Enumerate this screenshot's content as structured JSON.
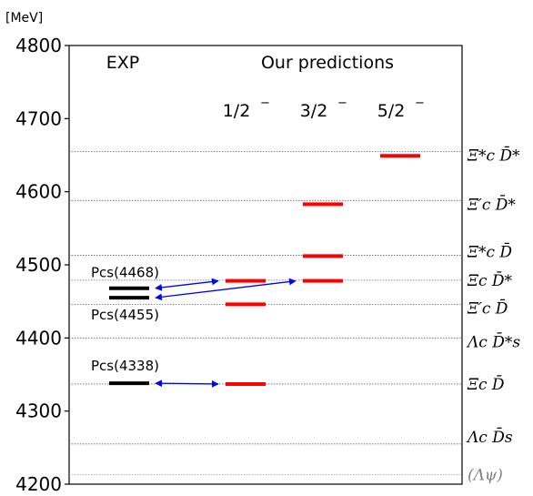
{
  "chart_data": {
    "type": "level-diagram",
    "unit_label": "[MeV]",
    "ylim": [
      4200,
      4800
    ],
    "yticks": [
      4200,
      4300,
      4400,
      4500,
      4600,
      4700,
      4800
    ],
    "column_headers": {
      "exp": "EXP",
      "predictions": "Our predictions",
      "jp": [
        "1/2",
        "3/2",
        "5/2"
      ],
      "jp_sign": "−"
    },
    "thresholds": [
      {
        "name": "Ξ*c D̄*",
        "value": 4655,
        "color": "#000000"
      },
      {
        "name": "Ξ′c D̄*",
        "value": 4588,
        "color": "#000000"
      },
      {
        "name": "Ξ*c D̄",
        "value": 4513,
        "color": "#000000"
      },
      {
        "name": "Ξc D̄*",
        "value": 4479,
        "color": "#000000"
      },
      {
        "name": "Ξ′c D̄",
        "value": 4446,
        "color": "#000000"
      },
      {
        "name": "Λc D̄*s",
        "value": 4400,
        "color": "#000000"
      },
      {
        "name": "Ξc D̄",
        "value": 4337,
        "color": "#000000"
      },
      {
        "name": "Λc D̄s",
        "value": 4255,
        "color": "#000000"
      },
      {
        "name": "(Λψ)",
        "value": 4213,
        "color": "#808080"
      }
    ],
    "experiment": [
      {
        "label": "Pcs(4468)",
        "value": 4468,
        "color": "#000000"
      },
      {
        "label": "Pcs(4455)",
        "value": 4455,
        "color": "#000000"
      },
      {
        "label": "Pcs(4338)",
        "value": 4338,
        "color": "#000000"
      }
    ],
    "predictions": [
      {
        "jp": "1/2",
        "value": 4478,
        "color": "#ff0000"
      },
      {
        "jp": "1/2",
        "value": 4446,
        "color": "#ff0000"
      },
      {
        "jp": "1/2",
        "value": 4337,
        "color": "#ff0000"
      },
      {
        "jp": "3/2",
        "value": 4583,
        "color": "#ff0000"
      },
      {
        "jp": "3/2",
        "value": 4512,
        "color": "#ff0000"
      },
      {
        "jp": "3/2",
        "value": 4478,
        "color": "#ff0000"
      },
      {
        "jp": "5/2",
        "value": 4649,
        "color": "#ff0000"
      }
    ],
    "assignments": [
      {
        "exp": "Pcs(4468)",
        "jp": "1/2",
        "value": 4478
      },
      {
        "exp": "Pcs(4455)",
        "jp": "3/2",
        "value": 4478
      },
      {
        "exp": "Pcs(4338)",
        "jp": "1/2",
        "value": 4337
      }
    ],
    "arrow_color": "#0000ff",
    "level_color": "#ff0000",
    "exp_color": "#000000",
    "grid": false,
    "legend": "none"
  }
}
